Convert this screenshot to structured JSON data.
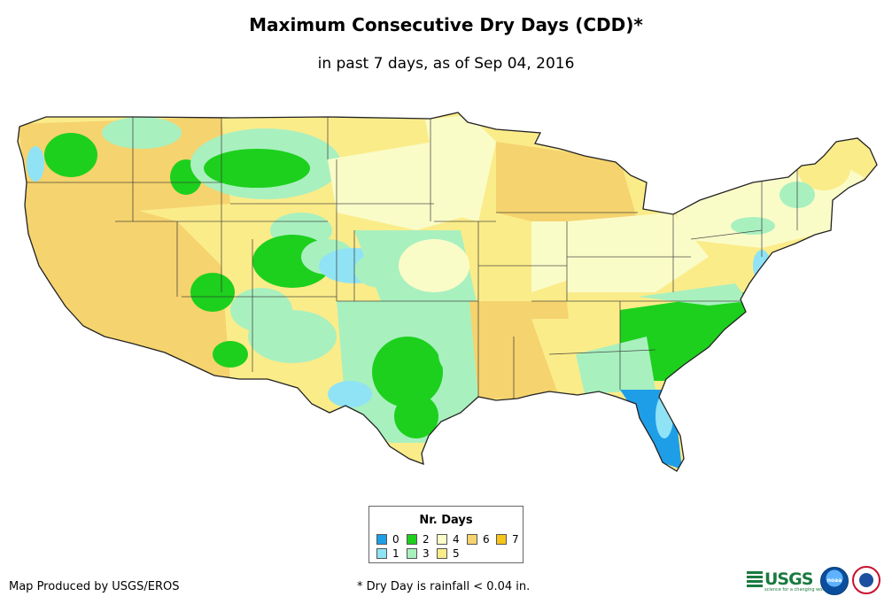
{
  "title": "Maximum Consecutive Dry Days (CDD)*",
  "subtitle": "in past 7 days, as of Sep 04, 2016",
  "legend": {
    "title": "Nr. Days",
    "items": [
      {
        "label": "0",
        "color": "#1f9ee8"
      },
      {
        "label": "1",
        "color": "#8fe3f5"
      },
      {
        "label": "2",
        "color": "#1dd01d"
      },
      {
        "label": "3",
        "color": "#a9f0bf"
      },
      {
        "label": "4",
        "color": "#fafcc8"
      },
      {
        "label": "5",
        "color": "#fbec8a"
      },
      {
        "label": "6",
        "color": "#f5d36e"
      },
      {
        "label": "7",
        "color": "#f6c51a"
      }
    ]
  },
  "credit": "Map Produced by USGS/EROS",
  "footnote": "* Dry Day is rainfall < 0.04 in.",
  "logos": {
    "usgs": "USGS",
    "usgs_tagline": "science for a changing world",
    "noaa": "noaa"
  },
  "icons": [
    "usgs-logo-icon",
    "noaa-logo-icon",
    "nws-logo-icon"
  ]
}
